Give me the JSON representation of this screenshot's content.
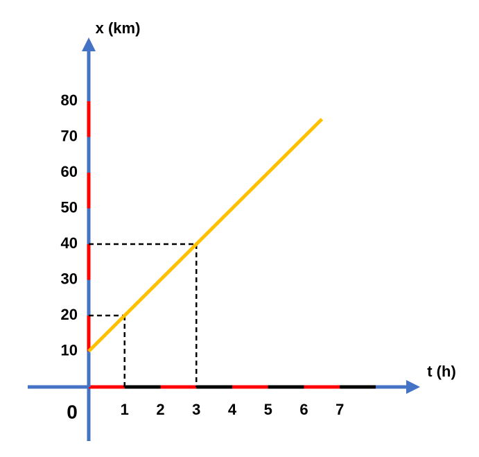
{
  "chart_data": {
    "type": "line",
    "x_label": "t (h)",
    "y_label": "x (km)",
    "origin_label": "0",
    "x": [
      0,
      6.5
    ],
    "values": [
      10,
      75
    ],
    "color": "#ffc000",
    "xlim": [
      0,
      8
    ],
    "ylim": [
      0,
      80
    ],
    "xticks": [
      1,
      2,
      3,
      4,
      5,
      6,
      7
    ],
    "yticks": [
      10,
      20,
      30,
      40,
      50,
      60,
      70,
      80
    ],
    "guides": [
      {
        "x": 1,
        "y": 20
      },
      {
        "x": 3,
        "y": 40
      }
    ],
    "axis_color": "#4472c4",
    "x_axis_stripes": [
      "#ff0000",
      "#000000"
    ],
    "y_axis_stripes": [
      "#4472c4",
      "#ff0000"
    ]
  }
}
